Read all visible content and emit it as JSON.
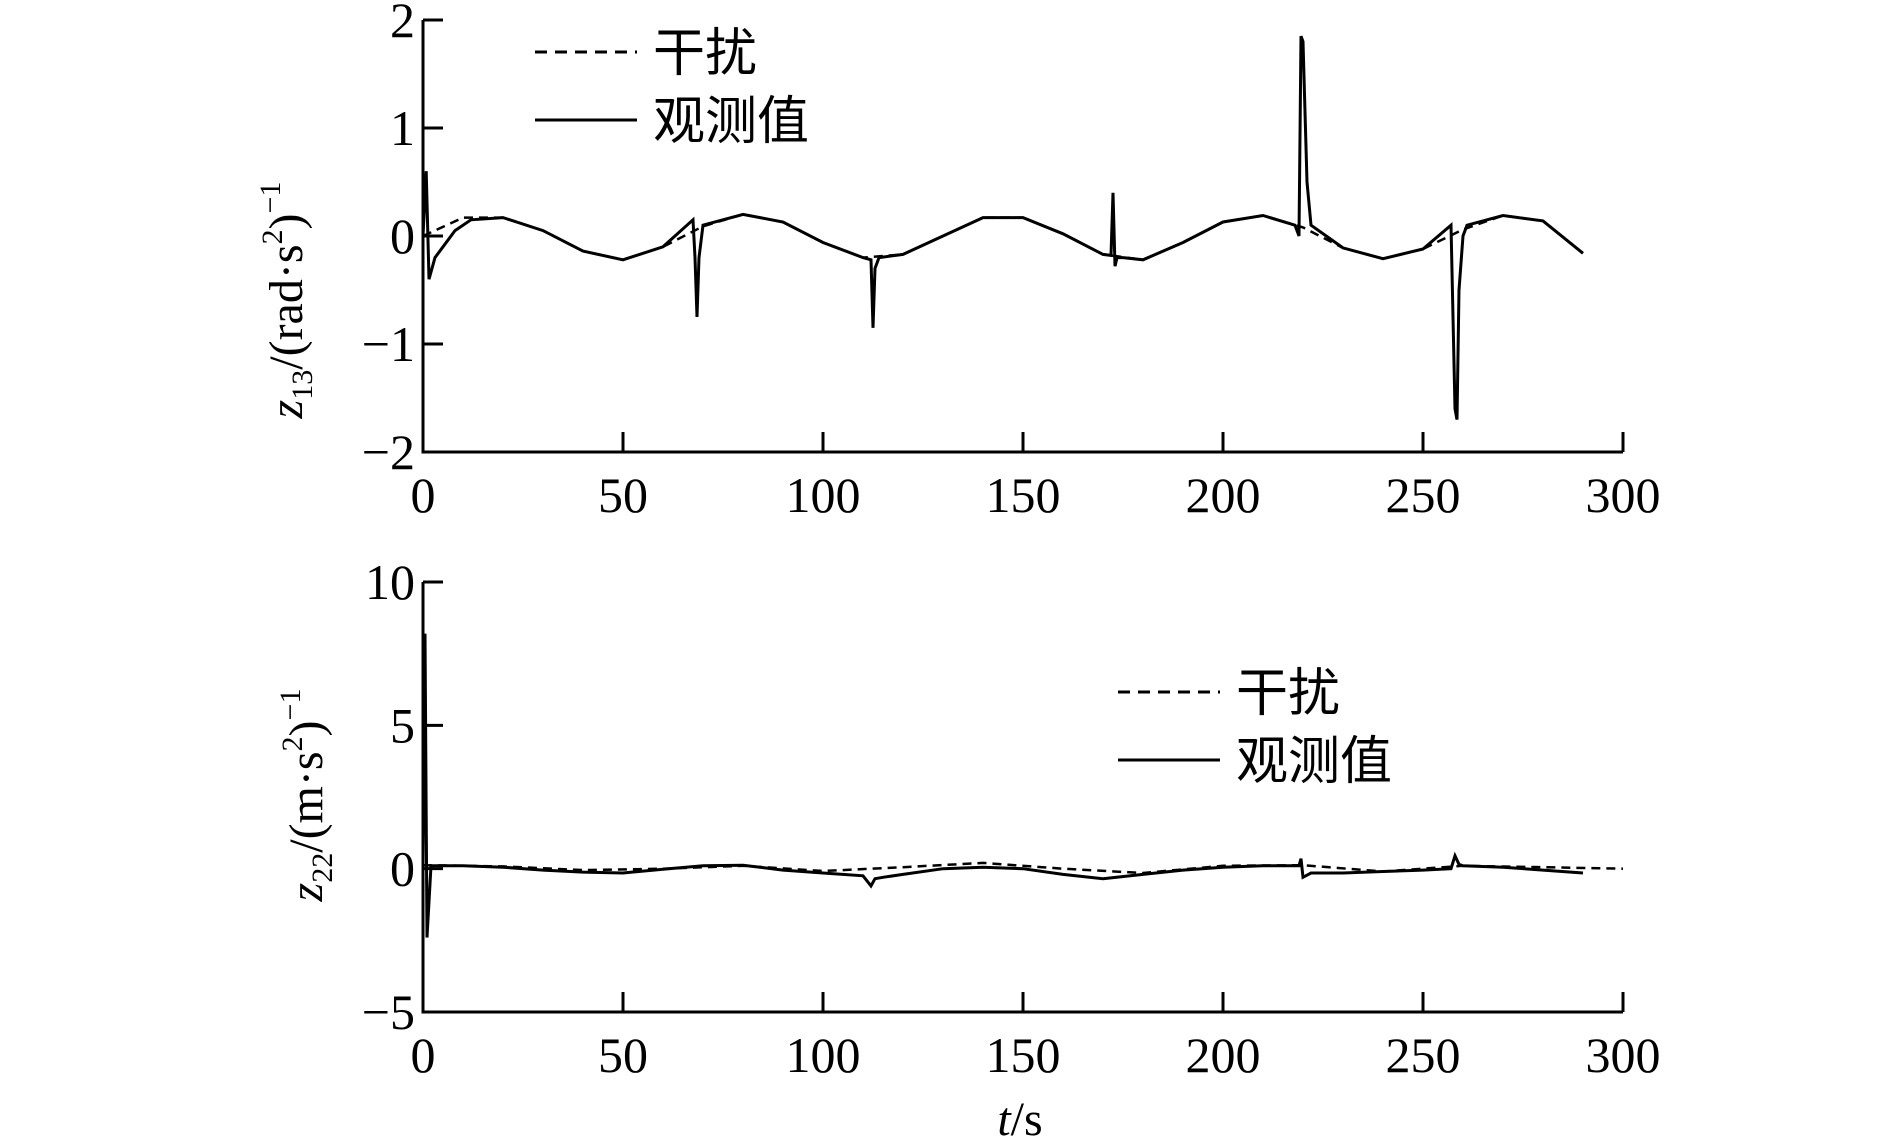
{
  "chart_data": [
    {
      "type": "line",
      "xlabel": {
        "var": "t",
        "unit": "/s"
      },
      "ylabel": {
        "var": "z",
        "sub": "13",
        "unit": "/(rad·s",
        "sup": "2",
        "close": ")",
        "exp": "−1"
      },
      "xlim": [
        0,
        300
      ],
      "ylim": [
        -2,
        2
      ],
      "xticks": [
        0,
        50,
        100,
        150,
        200,
        250,
        300
      ],
      "xtick_labels": [
        "0",
        "50",
        "100",
        "150",
        "200",
        "250",
        "300"
      ],
      "yticks": [
        -2,
        -1,
        0,
        1,
        2
      ],
      "ytick_labels": [
        "−2",
        "−1",
        "0",
        "1",
        "2"
      ],
      "legend": {
        "position": "top-left",
        "entries": [
          "干扰",
          "观测值"
        ]
      },
      "grid": false,
      "series": [
        {
          "name": "干扰",
          "style": "dashed",
          "x": [
            0,
            10,
            20,
            30,
            40,
            50,
            60,
            70,
            80,
            90,
            100,
            110,
            120,
            130,
            140,
            150,
            160,
            170,
            180,
            190,
            200,
            210,
            220,
            230,
            240,
            250,
            260,
            270,
            280,
            290
          ],
          "values": [
            0.0,
            0.17,
            0.17,
            0.05,
            -0.14,
            -0.22,
            -0.1,
            0.09,
            0.2,
            0.13,
            -0.06,
            -0.2,
            -0.17,
            0.0,
            0.17,
            0.17,
            0.02,
            -0.17,
            -0.22,
            -0.06,
            0.13,
            0.19,
            0.08,
            -0.11,
            -0.21,
            -0.12,
            0.06,
            0.19,
            0.14,
            -0.16
          ]
        },
        {
          "name": "观测值",
          "style": "solid",
          "x": [
            0,
            0.8,
            1.5,
            3,
            5,
            8,
            12,
            20,
            30,
            40,
            50,
            60,
            67.5,
            68,
            68.5,
            69,
            70,
            80,
            90,
            100,
            110,
            112,
            112.5,
            113,
            114,
            120,
            130,
            140,
            150,
            160,
            170,
            172,
            172.5,
            173,
            173.5,
            175,
            180,
            190,
            200,
            210,
            218,
            219,
            219.5,
            220,
            221,
            222,
            230,
            240,
            250,
            257,
            258,
            258.5,
            259,
            260,
            261,
            270,
            280,
            290
          ],
          "values": [
            0.0,
            0.6,
            -0.4,
            -0.2,
            -0.1,
            0.05,
            0.15,
            0.17,
            0.05,
            -0.14,
            -0.22,
            -0.1,
            0.15,
            -0.2,
            -0.75,
            -0.2,
            0.1,
            0.2,
            0.13,
            -0.06,
            -0.2,
            -0.22,
            -0.85,
            -0.3,
            -0.2,
            -0.17,
            0.0,
            0.17,
            0.17,
            0.02,
            -0.17,
            -0.18,
            0.4,
            -0.28,
            -0.2,
            -0.2,
            -0.22,
            -0.06,
            0.13,
            0.19,
            0.1,
            0.0,
            1.85,
            1.8,
            0.5,
            0.1,
            -0.11,
            -0.21,
            -0.12,
            0.1,
            -1.6,
            -1.7,
            -0.5,
            0.0,
            0.1,
            0.19,
            0.14,
            -0.16
          ]
        }
      ]
    },
    {
      "type": "line",
      "xlabel": {
        "var": "t",
        "unit": "/s"
      },
      "ylabel": {
        "var": "z",
        "sub": "22",
        "unit": "/(m·s",
        "sup": "2",
        "close": ")",
        "exp": "−1"
      },
      "xlim": [
        0,
        300
      ],
      "ylim": [
        -5,
        10
      ],
      "xticks": [
        0,
        50,
        100,
        150,
        200,
        250,
        300
      ],
      "xtick_labels": [
        "0",
        "50",
        "100",
        "150",
        "200",
        "250",
        "300"
      ],
      "yticks": [
        -5,
        0,
        5,
        10
      ],
      "ytick_labels": [
        "−5",
        "0",
        "5",
        "10"
      ],
      "legend": {
        "position": "center-right",
        "entries": [
          "干扰",
          "观测值"
        ]
      },
      "grid": false,
      "series": [
        {
          "name": "干扰",
          "style": "dashed",
          "x": [
            0,
            20,
            40,
            60,
            80,
            100,
            120,
            140,
            160,
            180,
            200,
            220,
            240,
            260,
            280,
            300
          ],
          "values": [
            0.12,
            0.08,
            -0.05,
            0.0,
            0.1,
            -0.08,
            0.05,
            0.2,
            0.0,
            -0.15,
            0.1,
            0.12,
            -0.1,
            0.1,
            0.05,
            0.0
          ]
        },
        {
          "name": "观测值",
          "style": "solid",
          "x": [
            0,
            0.5,
            1,
            2,
            10,
            20,
            30,
            40,
            50,
            60,
            70,
            80,
            90,
            100,
            110,
            112,
            113,
            115,
            120,
            130,
            140,
            150,
            160,
            170,
            180,
            190,
            200,
            210,
            219,
            219.5,
            220,
            222,
            230,
            240,
            250,
            257,
            258,
            259,
            260,
            270,
            280,
            290
          ],
          "values": [
            0.0,
            8.2,
            -2.4,
            0.1,
            0.1,
            0.05,
            -0.05,
            -0.12,
            -0.15,
            -0.02,
            0.1,
            0.12,
            -0.05,
            -0.15,
            -0.25,
            -0.6,
            -0.35,
            -0.3,
            -0.2,
            0.0,
            0.05,
            0.0,
            -0.2,
            -0.35,
            -0.2,
            -0.05,
            0.05,
            0.1,
            0.1,
            0.35,
            -0.3,
            -0.15,
            -0.15,
            -0.1,
            -0.05,
            0.0,
            0.45,
            0.15,
            0.1,
            0.05,
            -0.05,
            -0.15
          ]
        }
      ]
    }
  ]
}
